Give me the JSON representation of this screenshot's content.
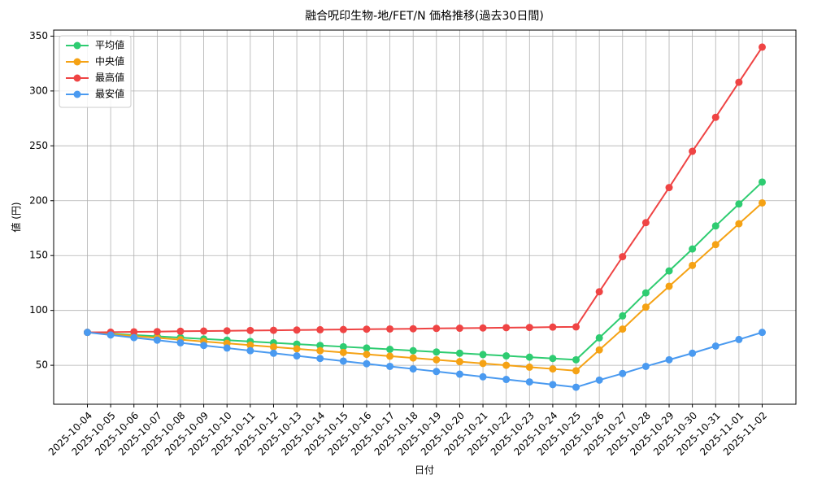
{
  "chart_data": {
    "type": "line",
    "title": "融合呪印生物-地/FET/N 価格推移(過去30日間)",
    "xlabel": "日付",
    "ylabel": "値 (円)",
    "categories": [
      "2025-10-04",
      "2025-10-05",
      "2025-10-06",
      "2025-10-07",
      "2025-10-08",
      "2025-10-09",
      "2025-10-10",
      "2025-10-11",
      "2025-10-12",
      "2025-10-13",
      "2025-10-14",
      "2025-10-15",
      "2025-10-16",
      "2025-10-17",
      "2025-10-18",
      "2025-10-19",
      "2025-10-20",
      "2025-10-21",
      "2025-10-22",
      "2025-10-23",
      "2025-10-24",
      "2025-10-25",
      "2025-10-26",
      "2025-10-27",
      "2025-10-28",
      "2025-10-29",
      "2025-10-30",
      "2025-10-31",
      "2025-11-01",
      "2025-11-02"
    ],
    "series": [
      {
        "name": "平均値",
        "color": "#2ecc71",
        "values": [
          80,
          78.8,
          77.6,
          76.4,
          75.2,
          74.0,
          72.9,
          71.7,
          70.5,
          69.3,
          68.1,
          66.9,
          65.7,
          64.5,
          63.3,
          62.1,
          61.0,
          59.8,
          58.6,
          57.4,
          56.2,
          55,
          75,
          95,
          116,
          136,
          156,
          177,
          197,
          217
        ]
      },
      {
        "name": "中央値",
        "color": "#f5a214",
        "values": [
          80,
          78.3,
          76.7,
          75,
          73.3,
          71.7,
          70,
          68.3,
          66.7,
          65,
          63.3,
          61.7,
          60,
          58.3,
          56.7,
          55,
          53.3,
          51.7,
          50,
          48.3,
          46.7,
          45,
          64,
          83,
          103,
          122,
          141,
          160,
          179,
          198
        ]
      },
      {
        "name": "最高値",
        "color": "#ef4444",
        "values": [
          80,
          80.2,
          80.5,
          80.7,
          81,
          81.2,
          81.4,
          81.7,
          81.9,
          82.1,
          82.4,
          82.6,
          82.9,
          83.1,
          83.3,
          83.6,
          83.8,
          84.0,
          84.3,
          84.5,
          84.8,
          85,
          117,
          149,
          180,
          212,
          245,
          276,
          308,
          340
        ]
      },
      {
        "name": "最安値",
        "color": "#4a9af0",
        "values": [
          80,
          77.6,
          75.2,
          72.9,
          70.5,
          68.1,
          65.7,
          63.3,
          61,
          58.6,
          56.2,
          53.8,
          51.4,
          49,
          46.7,
          44.3,
          41.9,
          39.5,
          37.1,
          34.8,
          32.4,
          30,
          36.5,
          42.5,
          49,
          55,
          61,
          67.5,
          73.5,
          80
        ]
      }
    ],
    "ylim": [
      14.5,
      355.5
    ],
    "yticks": [
      50,
      100,
      150,
      200,
      250,
      300,
      350
    ],
    "grid": true,
    "legend": "upper left"
  }
}
